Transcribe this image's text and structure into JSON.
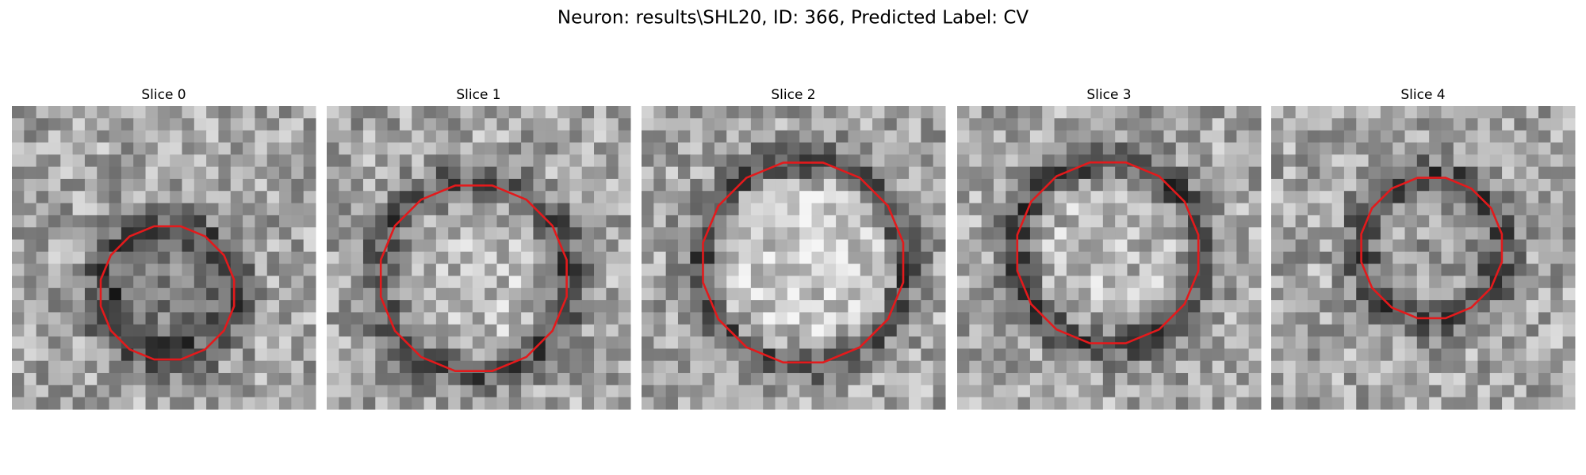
{
  "header": {
    "title": "Neuron: results\\SHL20, ID: 366, Predicted Label: CV"
  },
  "panels": [
    {
      "title": "Slice 0"
    },
    {
      "title": "Slice 1"
    },
    {
      "title": "Slice 2"
    },
    {
      "title": "Slice 3"
    },
    {
      "title": "Slice 4"
    }
  ]
}
